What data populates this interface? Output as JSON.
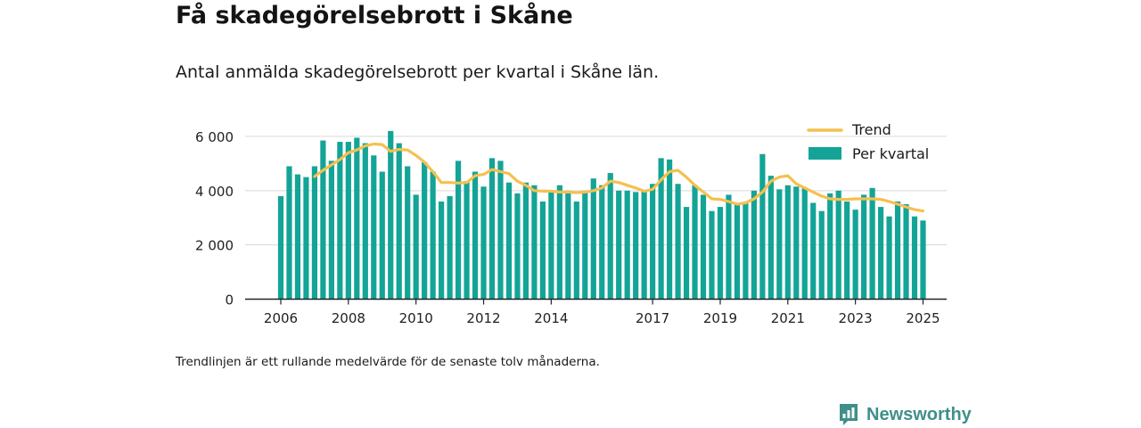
{
  "header": {
    "title": "Få skadegörelsebrott i Skåne",
    "subtitle": "Antal anmälda skadegörelsebrott per kvartal i Skåne län."
  },
  "footnote": "Trendlinjen är ett rullande medelvärde för de senaste tolv månaderna.",
  "brand": {
    "name": "Newsworthy",
    "icon": "newsworthy-logo-icon",
    "color": "#3f8f8a"
  },
  "chart_data": {
    "type": "bar",
    "x_start": "2006-Q1",
    "x_tick_labels": [
      "2006",
      "2008",
      "2010",
      "2012",
      "2014",
      "2017",
      "2019",
      "2021",
      "2023",
      "2025"
    ],
    "y_tick_labels": [
      "0",
      "2 000",
      "4 000",
      "6 000"
    ],
    "ylim": [
      0,
      6500
    ],
    "grid": true,
    "legend_position": "top-right",
    "colors": {
      "bars": "#13a497",
      "trend": "#f5c04f"
    },
    "series": [
      {
        "name": "Per kvartal",
        "kind": "bar",
        "values": [
          3800,
          4900,
          4600,
          4500,
          4900,
          5850,
          5100,
          5800,
          5800,
          5950,
          5750,
          5300,
          4700,
          6200,
          5750,
          4900,
          3850,
          5050,
          4700,
          3600,
          3800,
          5100,
          4350,
          4700,
          4150,
          5200,
          5100,
          4300,
          3900,
          4300,
          4200,
          3600,
          4000,
          4200,
          4000,
          3600,
          4000,
          4450,
          4200,
          4650,
          4000,
          4000,
          3950,
          4000,
          4250,
          5200,
          5150,
          4250,
          3400,
          4200,
          3850,
          3250,
          3400,
          3850,
          3500,
          3550,
          4000,
          5350,
          4550,
          4050,
          4200,
          4150,
          4100,
          3550,
          3250,
          3900,
          4000,
          3600,
          3300,
          3850,
          4100,
          3400,
          3050,
          3600,
          3500,
          3050,
          2900
        ]
      },
      {
        "name": "Trend",
        "kind": "line",
        "start_index": 4,
        "values": [
          4520,
          4750,
          4950,
          5150,
          5400,
          5500,
          5650,
          5720,
          5700,
          5450,
          5520,
          5500,
          5300,
          5050,
          4700,
          4300,
          4300,
          4280,
          4300,
          4550,
          4600,
          4780,
          4700,
          4630,
          4350,
          4200,
          4000,
          3980,
          3980,
          3950,
          3950,
          3930,
          3950,
          4000,
          4100,
          4350,
          4300,
          4200,
          4100,
          3980,
          4050,
          4400,
          4700,
          4750,
          4500,
          4200,
          3950,
          3700,
          3680,
          3600,
          3500,
          3550,
          3700,
          3950,
          4350,
          4500,
          4550,
          4250,
          4100,
          3950,
          3800,
          3700,
          3680,
          3680,
          3700,
          3700,
          3700,
          3680,
          3600,
          3500,
          3400,
          3300,
          3250
        ]
      }
    ]
  }
}
